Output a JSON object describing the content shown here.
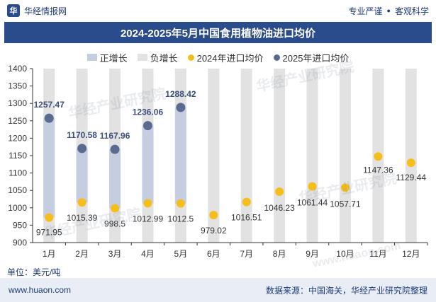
{
  "header": {
    "brand": "华经情报网",
    "slogan_left": "专业严谨",
    "slogan_right": "客观科学"
  },
  "title": "2024-2025年5月中国食用植物油进口均价",
  "legend": {
    "positive": "正增长",
    "negative": "负增长",
    "series_2024": "2024年进口均价",
    "series_2025": "2025年进口均价"
  },
  "unit_label": "单位：美元/吨",
  "footer": {
    "url": "www.huaon.com",
    "source": "数据来源：中国海关，华经产业研究院整理"
  },
  "watermark_text": "华经产业研究院",
  "watermark_url": "www.huaon.com",
  "colors": {
    "title_bg": "#2b4c8c",
    "positive_bar": "#c5cde0",
    "negative_bar": "#e2e2e2",
    "dot_2024": "#f5be1a",
    "dot_2025": "#5b6a8f",
    "label_2025": "#3c4e7c"
  },
  "chart_data": {
    "type": "scatter",
    "categories": [
      "1月",
      "2月",
      "3月",
      "4月",
      "5月",
      "6月",
      "7月",
      "8月",
      "9月",
      "10月",
      "11月",
      "12月"
    ],
    "series": [
      {
        "name": "2024年进口均价",
        "values": [
          971.95,
          1015.39,
          998.5,
          1012.99,
          1012.5,
          979.02,
          1016.51,
          1046.23,
          1061.44,
          1057.71,
          1147.36,
          1129.44
        ],
        "labels": [
          "971.95",
          "1015.39",
          "998.5",
          "1012.99",
          "1012.5",
          "979.02",
          "1016.51",
          "1046.23",
          "1061.44",
          "1057.71",
          "1147.36",
          "1129.44"
        ]
      },
      {
        "name": "2025年进口均价",
        "values": [
          1257.47,
          1170.58,
          1167.96,
          1236.06,
          1288.42,
          null,
          null,
          null,
          null,
          null,
          null,
          null
        ],
        "labels": [
          "1257.47",
          "1170.58",
          "1167.96",
          "1236.06",
          "1288.42",
          "",
          "",
          "",
          "",
          "",
          "",
          ""
        ]
      }
    ],
    "bars": {
      "positive_months": [
        0,
        1,
        2,
        3,
        4
      ],
      "background": "negative"
    },
    "y_ticks": [
      "900",
      "950",
      "1000",
      "1050",
      "1100",
      "1150",
      "1200",
      "1250",
      "1300",
      "1350",
      "1400"
    ],
    "ylim": [
      900,
      1400
    ],
    "grid": false
  }
}
